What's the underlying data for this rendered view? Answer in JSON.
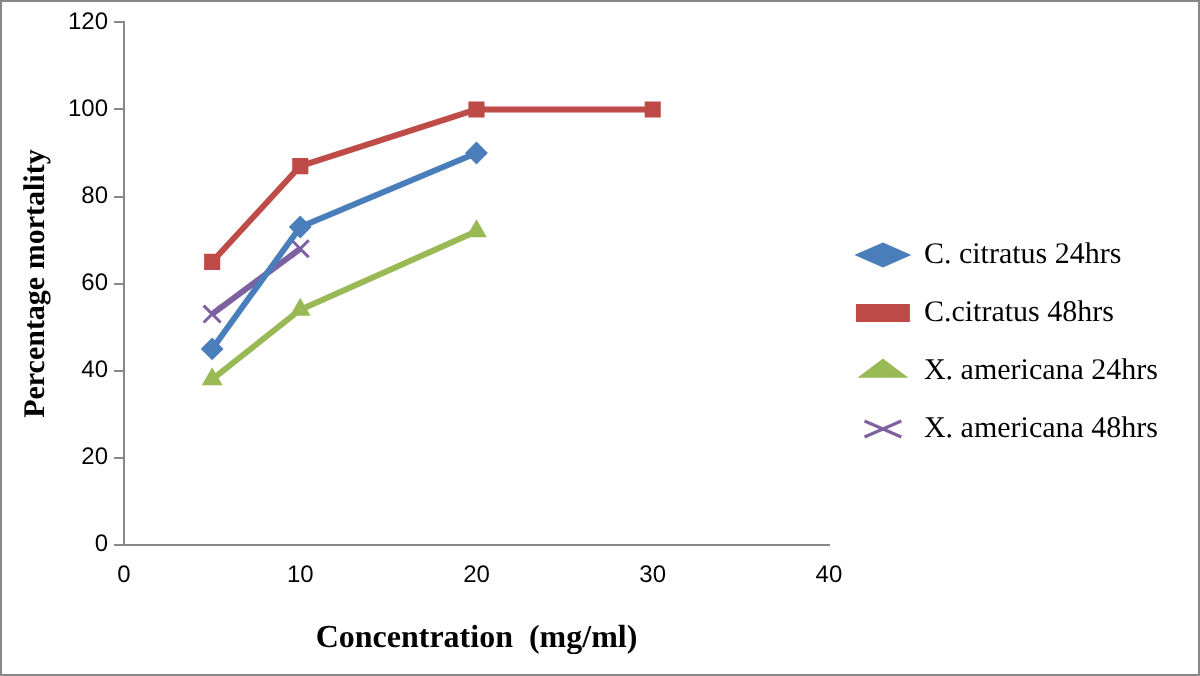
{
  "chart_data": {
    "type": "line",
    "xlabel": "Concentration  (mg/ml)",
    "ylabel": "Percentage mortality",
    "xlim": [
      0,
      40
    ],
    "xticks": [
      0,
      10,
      20,
      30,
      40
    ],
    "ylim": [
      0,
      120
    ],
    "yticks": [
      0,
      20,
      40,
      60,
      80,
      100,
      120
    ],
    "grid": false,
    "legend": "right",
    "series": [
      {
        "name": "C. citratus 24hrs",
        "color": "#4a7ebb",
        "x": [
          5,
          10,
          20
        ],
        "values": [
          45,
          73,
          90
        ],
        "marker": "diamond"
      },
      {
        "name": "C.citratus 48hrs",
        "color": "#be4b48",
        "x": [
          5,
          10,
          20,
          30
        ],
        "values": [
          65,
          87,
          100,
          100
        ],
        "marker": "square"
      },
      {
        "name": "X. americana 24hrs",
        "color": "#98b954",
        "x": [
          5,
          10,
          20
        ],
        "values": [
          38,
          54,
          72
        ],
        "marker": "triangle"
      },
      {
        "name": "X. americana 48hrs",
        "color": "#7d60a0",
        "x": [
          5,
          10
        ],
        "values": [
          53,
          68
        ],
        "marker": "cross"
      }
    ]
  }
}
